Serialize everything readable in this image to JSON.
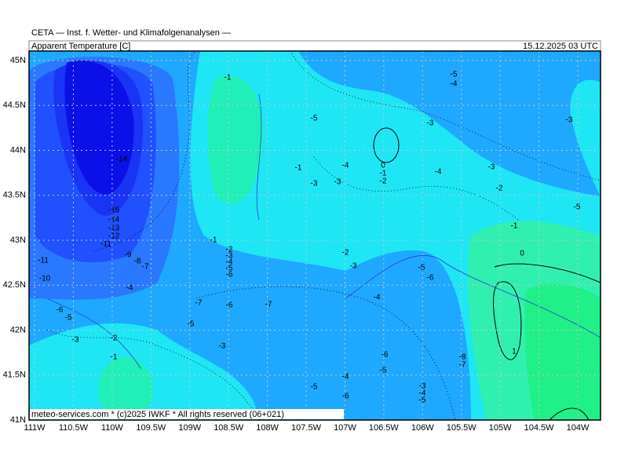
{
  "header": {
    "institute": "CETA — Inst. f. Wetter- und Klimafolgenanalysen —",
    "parameter": "Apparent Temperature [C]",
    "valid_time": "15.12.2025 03 UTC"
  },
  "footer": "meteo-services.com * (c)2025 IWKF * All rights reserved (06+021)",
  "map": {
    "lat_labels": [
      "45N",
      "44.5N",
      "44N",
      "43.5N",
      "43N",
      "42.5N",
      "42N",
      "41.5N",
      "41N"
    ],
    "lon_labels": [
      "111W",
      "110.5W",
      "110W",
      "109.5W",
      "109W",
      "108.5W",
      "108W",
      "107.5W",
      "107W",
      "106.5W",
      "106W",
      "105.5W",
      "105W",
      "104.5W",
      "104W"
    ],
    "contour_labels": [
      -1,
      -5,
      -4,
      -5,
      -3,
      -3,
      -14,
      -1,
      -4,
      0,
      -1,
      -2,
      -4,
      -3,
      -3,
      -3,
      -2,
      -5,
      -15,
      -14,
      -13,
      -12,
      -11,
      -1,
      -1,
      -2,
      -3,
      -4,
      -5,
      -6,
      -11,
      -9,
      -8,
      -7,
      -2,
      -3,
      0,
      -5,
      -6,
      -10,
      -4,
      -4,
      -7,
      -6,
      -7,
      -6,
      -5,
      -5,
      -3,
      -2,
      -3,
      -1,
      1,
      -6,
      -8,
      -7,
      -5,
      -4,
      -5,
      -3,
      -4,
      -5,
      -6
    ]
  }
}
